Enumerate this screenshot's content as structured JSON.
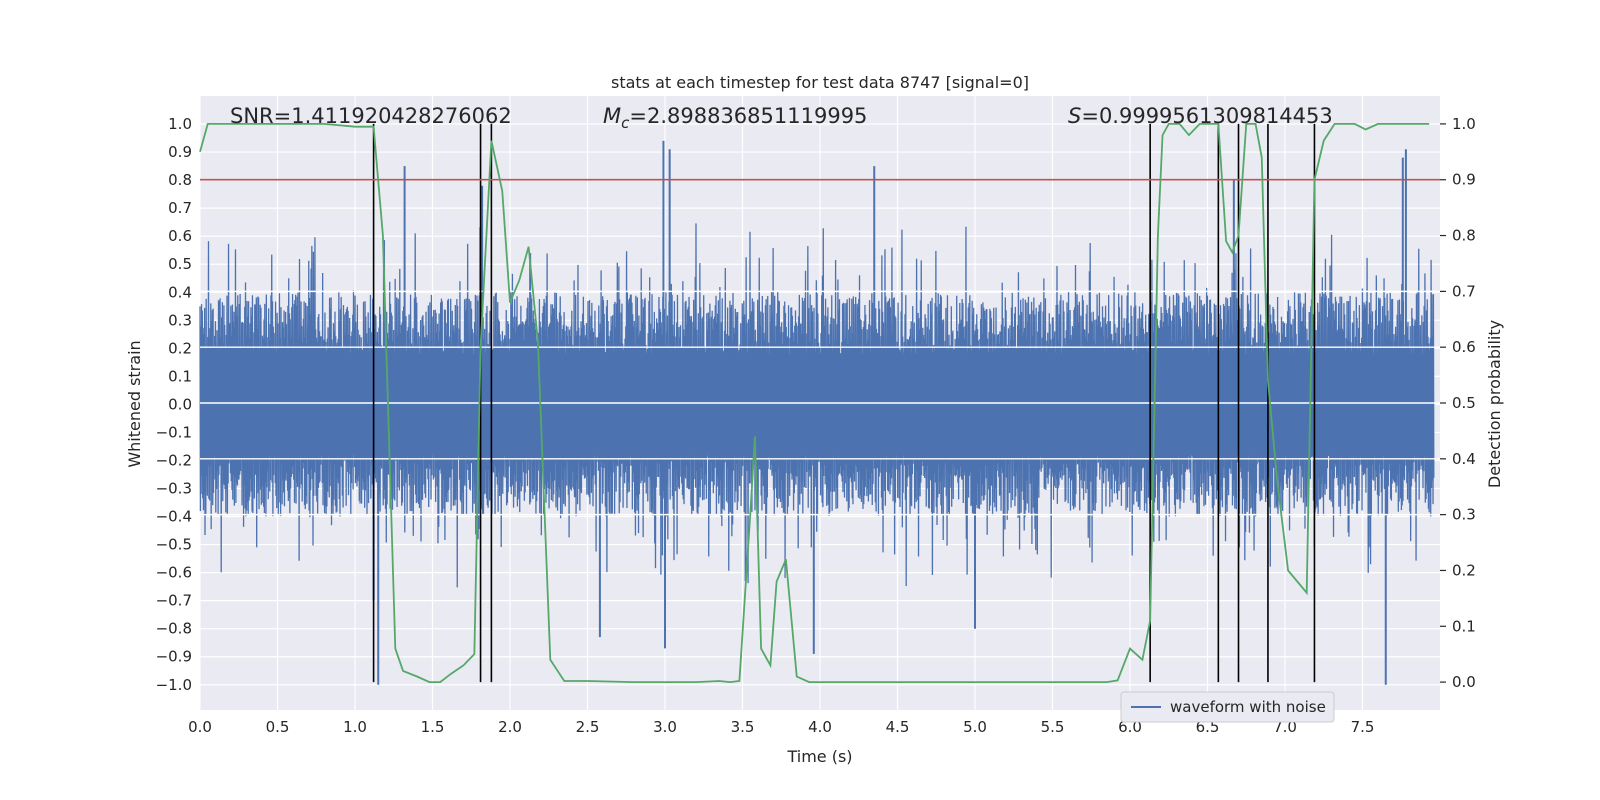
{
  "chart_data": {
    "type": "line",
    "title": "stats at each timestep for test data 8747 [signal=0]",
    "xlabel": "Time (s)",
    "ylabel": "Whitened strain",
    "y2label": "Detection probability",
    "xlim": [
      0.0,
      8.0
    ],
    "ylim": [
      -1.09,
      1.1
    ],
    "y2lim": [
      -0.05,
      1.05
    ],
    "xticks": [
      "0.0",
      "0.5",
      "1.0",
      "1.5",
      "2.0",
      "2.5",
      "3.0",
      "3.5",
      "4.0",
      "4.5",
      "5.0",
      "5.5",
      "6.0",
      "6.5",
      "7.0",
      "7.5"
    ],
    "yticks": [
      "1.0",
      "0.9",
      "0.8",
      "0.7",
      "0.6",
      "0.5",
      "0.4",
      "0.3",
      "0.2",
      "0.1",
      "0.0",
      "-0.1",
      "-0.2",
      "-0.3",
      "-0.4",
      "-0.5",
      "-0.6",
      "-0.7",
      "-0.8",
      "-0.9",
      "-1.0"
    ],
    "y2ticks": [
      "1.0",
      "0.9",
      "0.8",
      "0.7",
      "0.6",
      "0.5",
      "0.4",
      "0.3",
      "0.2",
      "0.1",
      "0.0"
    ],
    "grid": true,
    "legend": {
      "position": "bottom-right",
      "entries": [
        "waveform with noise"
      ]
    },
    "annotations": {
      "snr": "SNR=1.411920428276062",
      "mc_symbol": "M",
      "mc_sub": "c",
      "mc_value": "=2.898836851119995",
      "s_symbol": "S",
      "s_value": "=0.9999561309814453"
    },
    "threshold_line": {
      "axis": "right",
      "value": 0.9,
      "color": "#c44e52"
    },
    "vertical_lines_x": [
      1.12,
      1.81,
      1.88,
      6.13,
      6.57,
      6.7,
      6.89,
      7.19
    ],
    "horizontal_white_lines_right_axis": [
      0.7,
      0.6,
      0.5,
      0.4,
      0.3
    ],
    "series": [
      {
        "name": "waveform with noise",
        "color": "#4c72b0",
        "kind": "waveform",
        "typical_abs_envelope": 0.4,
        "peaks": [
          {
            "x": 1.12,
            "y": -0.7
          },
          {
            "x": 1.15,
            "y": -1.0
          },
          {
            "x": 1.32,
            "y": 0.85
          },
          {
            "x": 1.82,
            "y": 0.78
          },
          {
            "x": 2.13,
            "y": 0.54
          },
          {
            "x": 2.58,
            "y": -0.83
          },
          {
            "x": 2.99,
            "y": 0.94
          },
          {
            "x": 3.0,
            "y": -0.87
          },
          {
            "x": 3.03,
            "y": 0.91
          },
          {
            "x": 3.52,
            "y": -0.63
          },
          {
            "x": 3.96,
            "y": -0.89
          },
          {
            "x": 4.35,
            "y": 0.85
          },
          {
            "x": 5.0,
            "y": -0.8
          },
          {
            "x": 6.67,
            "y": 0.8
          },
          {
            "x": 7.65,
            "y": -1.0
          },
          {
            "x": 7.76,
            "y": 0.88
          },
          {
            "x": 7.78,
            "y": 0.91
          }
        ]
      },
      {
        "name": "",
        "color": "#55a868",
        "axis": "right",
        "x": [
          0.0,
          0.05,
          0.2,
          0.5,
          0.8,
          1.0,
          1.05,
          1.12,
          1.18,
          1.26,
          1.31,
          1.4,
          1.48,
          1.55,
          1.62,
          1.7,
          1.77,
          1.81,
          1.88,
          1.95,
          2.0,
          2.06,
          2.12,
          2.18,
          2.26,
          2.35,
          2.5,
          2.8,
          3.2,
          3.35,
          3.42,
          3.48,
          3.55,
          3.58,
          3.62,
          3.68,
          3.72,
          3.78,
          3.85,
          3.93,
          4.5,
          5.0,
          5.5,
          5.85,
          5.92,
          6.0,
          6.04,
          6.08,
          6.13,
          6.18,
          6.21,
          6.25,
          6.32,
          6.38,
          6.45,
          6.52,
          6.57,
          6.62,
          6.66,
          6.7,
          6.75,
          6.81,
          6.85,
          6.89,
          6.95,
          7.02,
          7.08,
          7.14,
          7.19,
          7.25,
          7.32,
          7.38,
          7.45,
          7.52,
          7.6,
          7.66,
          7.72,
          7.78,
          7.85,
          7.93
        ],
        "y": [
          0.95,
          1.0,
          1.0,
          1.0,
          1.0,
          0.995,
          0.995,
          0.995,
          0.8,
          0.06,
          0.02,
          0.01,
          0.0,
          0.0,
          0.015,
          0.03,
          0.05,
          0.6,
          0.97,
          0.88,
          0.68,
          0.72,
          0.78,
          0.61,
          0.04,
          0.002,
          0.002,
          0.0,
          0.0,
          0.002,
          0.0,
          0.002,
          0.3,
          0.44,
          0.06,
          0.03,
          0.18,
          0.22,
          0.01,
          0.0,
          0.0,
          0.0,
          0.0,
          0.0,
          0.003,
          0.06,
          0.05,
          0.04,
          0.11,
          0.8,
          0.98,
          1.0,
          1.0,
          0.98,
          1.0,
          1.0,
          1.0,
          0.79,
          0.77,
          0.8,
          1.0,
          1.0,
          0.94,
          0.54,
          0.36,
          0.2,
          0.18,
          0.16,
          0.9,
          0.97,
          1.0,
          1.0,
          1.0,
          0.99,
          1.0,
          1.0,
          1.0,
          1.0,
          1.0,
          1.0
        ]
      }
    ]
  }
}
